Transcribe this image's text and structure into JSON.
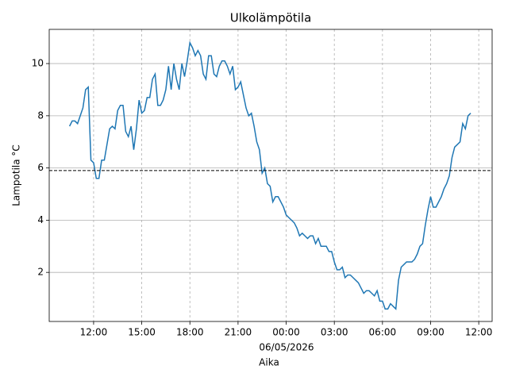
{
  "chart_data": {
    "type": "line",
    "title": "Ulkolämpötila",
    "xlabel": "Aika",
    "ylabel": "Lampotila °C",
    "x_date_label": "06/05/2026",
    "x": [
      "05/05/2026 10:30",
      "05/05/2026 10:40",
      "05/05/2026 10:50",
      "05/05/2026 11:00",
      "05/05/2026 11:10",
      "05/05/2026 11:20",
      "05/05/2026 11:30",
      "05/05/2026 11:40",
      "05/05/2026 11:50",
      "05/05/2026 12:00",
      "05/05/2026 12:10",
      "05/05/2026 12:20",
      "05/05/2026 12:30",
      "05/05/2026 12:40",
      "05/05/2026 12:50",
      "05/05/2026 13:00",
      "05/05/2026 13:10",
      "05/05/2026 13:20",
      "05/05/2026 13:30",
      "05/05/2026 13:40",
      "05/05/2026 13:50",
      "05/05/2026 14:00",
      "05/05/2026 14:10",
      "05/05/2026 14:20",
      "05/05/2026 14:30",
      "05/05/2026 14:40",
      "05/05/2026 14:50",
      "05/05/2026 15:00",
      "05/05/2026 15:10",
      "05/05/2026 15:20",
      "05/05/2026 15:30",
      "05/05/2026 15:40",
      "05/05/2026 15:50",
      "05/05/2026 16:00",
      "05/05/2026 16:10",
      "05/05/2026 16:20",
      "05/05/2026 16:30",
      "05/05/2026 16:40",
      "05/05/2026 16:50",
      "05/05/2026 17:00",
      "05/05/2026 17:10",
      "05/05/2026 17:20",
      "05/05/2026 17:30",
      "05/05/2026 17:40",
      "05/05/2026 17:50",
      "05/05/2026 18:00",
      "05/05/2026 18:10",
      "05/05/2026 18:20",
      "05/05/2026 18:30",
      "05/05/2026 18:40",
      "05/05/2026 18:50",
      "05/05/2026 19:00",
      "05/05/2026 19:10",
      "05/05/2026 19:20",
      "05/05/2026 19:30",
      "05/05/2026 19:40",
      "05/05/2026 19:50",
      "05/05/2026 20:00",
      "05/05/2026 20:10",
      "05/05/2026 20:20",
      "05/05/2026 20:30",
      "05/05/2026 20:40",
      "05/05/2026 20:50",
      "05/05/2026 21:00",
      "05/05/2026 21:10",
      "05/05/2026 21:20",
      "05/05/2026 21:30",
      "05/05/2026 21:40",
      "05/05/2026 21:50",
      "05/05/2026 22:00",
      "05/05/2026 22:10",
      "05/05/2026 22:20",
      "05/05/2026 22:30",
      "05/05/2026 22:40",
      "05/05/2026 22:50",
      "05/05/2026 23:00",
      "05/05/2026 23:10",
      "05/05/2026 23:20",
      "05/05/2026 23:30",
      "05/05/2026 23:40",
      "05/05/2026 23:50",
      "06/05/2026 00:00",
      "06/05/2026 00:10",
      "06/05/2026 00:20",
      "06/05/2026 00:30",
      "06/05/2026 00:40",
      "06/05/2026 00:50",
      "06/05/2026 01:00",
      "06/05/2026 01:10",
      "06/05/2026 01:20",
      "06/05/2026 01:30",
      "06/05/2026 01:40",
      "06/05/2026 01:50",
      "06/05/2026 02:00",
      "06/05/2026 02:10",
      "06/05/2026 02:20",
      "06/05/2026 02:30",
      "06/05/2026 02:40",
      "06/05/2026 02:50",
      "06/05/2026 03:00",
      "06/05/2026 03:10",
      "06/05/2026 03:20",
      "06/05/2026 03:30",
      "06/05/2026 03:40",
      "06/05/2026 03:50",
      "06/05/2026 04:00",
      "06/05/2026 04:10",
      "06/05/2026 04:20",
      "06/05/2026 04:30",
      "06/05/2026 04:40",
      "06/05/2026 04:50",
      "06/05/2026 05:00",
      "06/05/2026 05:10",
      "06/05/2026 05:20",
      "06/05/2026 05:30",
      "06/05/2026 05:40",
      "06/05/2026 05:50",
      "06/05/2026 06:00",
      "06/05/2026 06:10",
      "06/05/2026 06:20",
      "06/05/2026 06:30",
      "06/05/2026 06:40",
      "06/05/2026 06:50",
      "06/05/2026 07:00",
      "06/05/2026 07:10",
      "06/05/2026 07:20",
      "06/05/2026 07:30",
      "06/05/2026 07:40",
      "06/05/2026 07:50",
      "06/05/2026 08:00",
      "06/05/2026 08:10",
      "06/05/2026 08:20",
      "06/05/2026 08:30",
      "06/05/2026 08:40",
      "06/05/2026 08:50",
      "06/05/2026 09:00",
      "06/05/2026 09:10",
      "06/05/2026 09:20",
      "06/05/2026 09:30",
      "06/05/2026 09:40",
      "06/05/2026 09:50",
      "06/05/2026 10:00",
      "06/05/2026 10:10",
      "06/05/2026 10:20",
      "06/05/2026 10:30",
      "06/05/2026 10:40",
      "06/05/2026 10:50",
      "06/05/2026 11:00",
      "06/05/2026 11:10",
      "06/05/2026 11:20",
      "06/05/2026 11:30"
    ],
    "series": [
      {
        "color": "#1f77b4",
        "values": [
          7.6,
          7.8,
          7.8,
          7.7,
          8.0,
          8.3,
          9.0,
          9.1,
          6.3,
          6.2,
          5.6,
          5.6,
          6.3,
          6.3,
          6.9,
          7.5,
          7.6,
          7.5,
          8.2,
          8.4,
          8.4,
          7.4,
          7.2,
          7.6,
          6.7,
          7.5,
          8.6,
          8.1,
          8.2,
          8.7,
          8.7,
          9.4,
          9.6,
          8.4,
          8.4,
          8.6,
          9.0,
          9.9,
          9.0,
          10.0,
          9.4,
          9.0,
          10.0,
          9.5,
          10.1,
          10.8,
          10.6,
          10.3,
          10.5,
          10.3,
          9.6,
          9.4,
          10.3,
          10.3,
          9.6,
          9.5,
          9.9,
          10.1,
          10.1,
          9.9,
          9.6,
          9.9,
          9.0,
          9.1,
          9.3,
          8.8,
          8.3,
          8.0,
          8.1,
          7.6,
          7.0,
          6.7,
          5.8,
          6.0,
          5.4,
          5.3,
          4.7,
          4.9,
          4.9,
          4.7,
          4.5,
          4.2,
          4.1,
          4.0,
          3.9,
          3.7,
          3.4,
          3.5,
          3.4,
          3.3,
          3.4,
          3.4,
          3.1,
          3.3,
          3.0,
          3.0,
          3.0,
          2.8,
          2.8,
          2.4,
          2.1,
          2.1,
          2.2,
          1.8,
          1.9,
          1.9,
          1.8,
          1.7,
          1.6,
          1.4,
          1.2,
          1.3,
          1.3,
          1.2,
          1.1,
          1.3,
          0.9,
          0.9,
          0.6,
          0.6,
          0.8,
          0.7,
          0.6,
          1.7,
          2.2,
          2.3,
          2.4,
          2.4,
          2.4,
          2.5,
          2.7,
          3.0,
          3.1,
          3.8,
          4.4,
          4.9,
          4.5,
          4.5,
          4.7,
          4.9,
          5.2,
          5.4,
          5.7,
          6.4,
          6.8,
          6.9,
          7.0,
          7.7,
          7.5,
          8.0,
          8.1
        ]
      }
    ],
    "hline": 5.9,
    "hline_color": "#000000",
    "xlim": [
      "05/05/2026 09:14",
      "06/05/2026 12:50"
    ],
    "xticks": [
      {
        "value": "05/05/2026 12:00",
        "label": "12:00"
      },
      {
        "value": "05/05/2026 15:00",
        "label": "15:00"
      },
      {
        "value": "05/05/2026 18:00",
        "label": "18:00"
      },
      {
        "value": "05/05/2026 21:00",
        "label": "21:00"
      },
      {
        "value": "06/05/2026 00:00",
        "label": "00:00"
      },
      {
        "value": "06/05/2026 03:00",
        "label": "03:00"
      },
      {
        "value": "06/05/2026 06:00",
        "label": "06:00"
      },
      {
        "value": "06/05/2026 09:00",
        "label": "09:00"
      },
      {
        "value": "06/05/2026 12:00",
        "label": "12:00"
      }
    ],
    "ylim": [
      0.12,
      11.31
    ],
    "yticks": [
      2,
      4,
      6,
      8,
      10
    ],
    "grid": true
  }
}
